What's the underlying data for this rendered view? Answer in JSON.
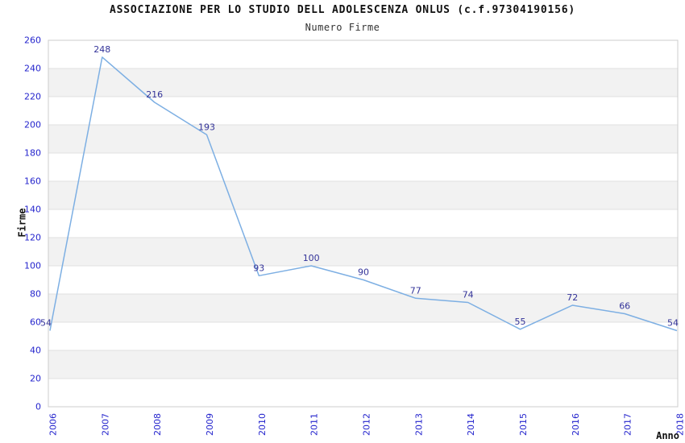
{
  "chart_data": {
    "type": "line",
    "title": "ASSOCIAZIONE PER LO STUDIO DELL ADOLESCENZA ONLUS (c.f.97304190156)",
    "subtitle": "Numero Firme",
    "xlabel": "Anno",
    "ylabel": "Firme",
    "categories": [
      "2006",
      "2007",
      "2008",
      "2009",
      "2010",
      "2011",
      "2012",
      "2013",
      "2014",
      "2015",
      "2016",
      "2017",
      "2018"
    ],
    "values": [
      54,
      248,
      216,
      193,
      93,
      100,
      90,
      77,
      74,
      55,
      72,
      66,
      54
    ],
    "ylim": [
      0,
      260
    ],
    "ytick_step": 20,
    "yticks": [
      0,
      20,
      40,
      60,
      80,
      100,
      120,
      140,
      160,
      180,
      200,
      220,
      240,
      260
    ],
    "grid": "horizontal gridlines with alternating gray bands",
    "legend": "none",
    "data_labels_visible": true,
    "colors": {
      "line": "#7dafe3",
      "data_label": "#333399",
      "tick_label": "#2424cd",
      "band": "#f2f2f2",
      "gridline": "#e0e0e0",
      "border": "#cccccc",
      "title_text": "#111111"
    }
  }
}
